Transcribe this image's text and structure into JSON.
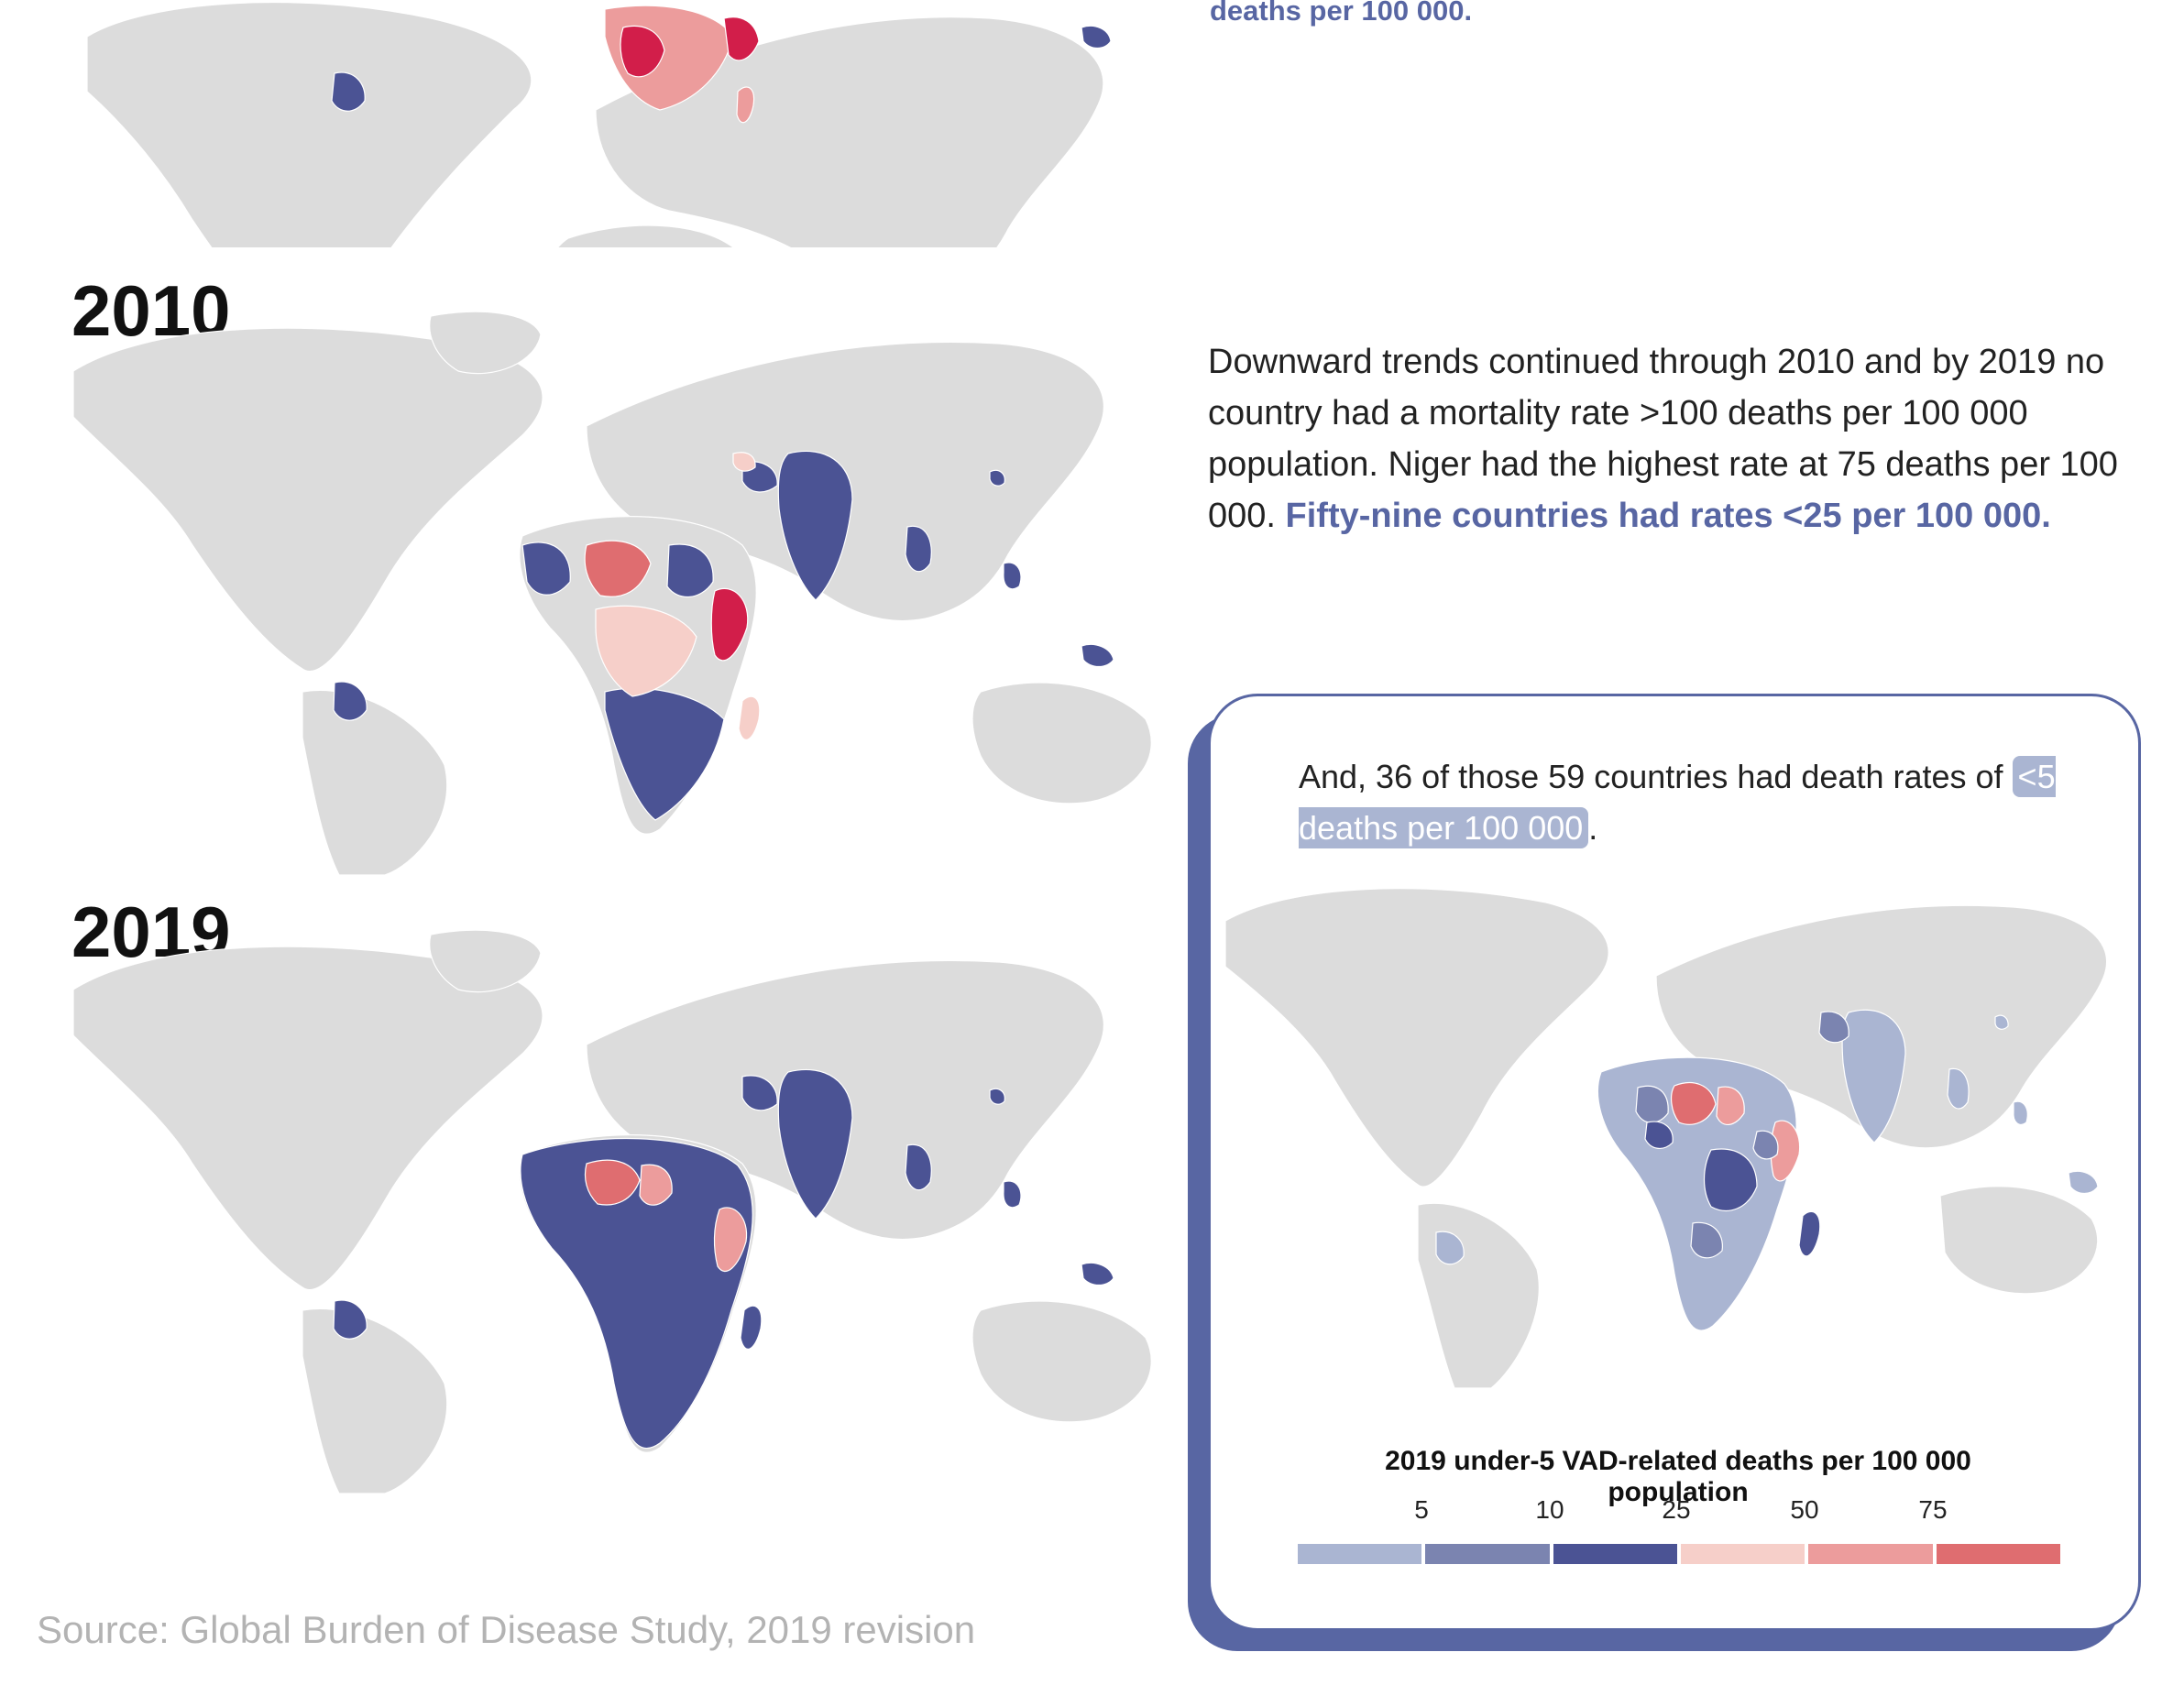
{
  "years": {
    "y2010": "2010",
    "y2019": "2019"
  },
  "top_trailing_text": "deaths per 100 000.",
  "narrative": {
    "part1": "Downward trends continued through 2010 and by 2019 no country had a mortality rate >100 deaths per 100 000 population. Niger had the highest rate at 75 deaths per 100 000. ",
    "highlight": "Fifty-nine countries had rates <25 per 100 000."
  },
  "callout": {
    "text_before": "And, 36 of those 59 countries had death rates of ",
    "pill": "<5 deaths per 100 000",
    "text_after": "."
  },
  "legend": {
    "title": "2019 under-5 VAD-related deaths per 100 000 population",
    "ticks": [
      "5",
      "10",
      "25",
      "50",
      "75"
    ],
    "colors": [
      "#aab5d2",
      "#7b84b0",
      "#4b5394",
      "#f6cfc9",
      "#ec9c9c",
      "#df6d70"
    ]
  },
  "map_colors": {
    "land": "#dcdcdc",
    "dark_blue": "#4b5394",
    "mid_blue": "#7b84b0",
    "light_blue": "#aab5d2",
    "pale_pink": "#f6cfc9",
    "pink": "#ec9c9c",
    "red": "#df6d70",
    "crimson": "#d21e4a"
  },
  "source": "Source: Global Burden of Disease Study, 2019 revision"
}
